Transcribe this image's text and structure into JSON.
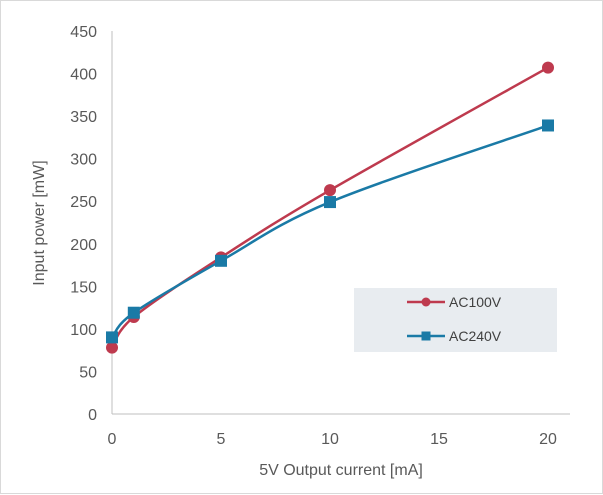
{
  "chart_data": {
    "type": "line",
    "title": "",
    "xlabel": "5V Output current [mA]",
    "ylabel": "Input power [mW]",
    "xlim": [
      0,
      20
    ],
    "ylim": [
      0,
      450
    ],
    "xticks": [
      0,
      5,
      10,
      15,
      20
    ],
    "yticks": [
      0,
      50,
      100,
      150,
      200,
      250,
      300,
      350,
      400,
      450
    ],
    "grid": false,
    "legend_position": "lower-right",
    "series": [
      {
        "name": "AC100V",
        "color": "#be3a4e",
        "marker": "circle",
        "x": [
          0,
          1,
          5,
          10,
          20
        ],
        "y": [
          78,
          114,
          184,
          263,
          407
        ]
      },
      {
        "name": "AC240V",
        "color": "#1a7aa6",
        "marker": "square",
        "x": [
          0,
          1,
          5,
          10,
          20
        ],
        "y": [
          90,
          119,
          180,
          249,
          339
        ]
      }
    ]
  }
}
